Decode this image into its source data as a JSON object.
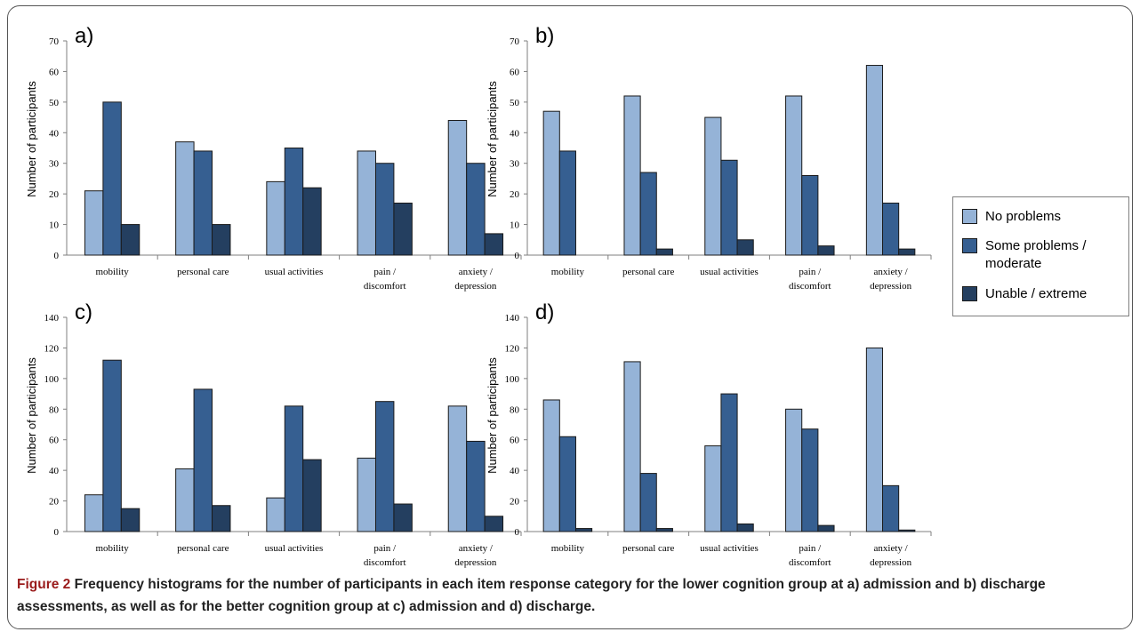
{
  "figure": {
    "caption_label": "Figure 2",
    "caption_text": " Frequency histograms for the number of participants in each item response category for the lower cognition group at a) admission and b) discharge assessments, as well as for the better cognition group at c) admission and d) discharge."
  },
  "legend": {
    "placement": "right",
    "items": [
      {
        "label": "No problems",
        "color": "#95b3d7"
      },
      {
        "label": "Some problems / moderate",
        "color": "#365f91"
      },
      {
        "label": "Unable / extreme",
        "color": "#243f60"
      }
    ]
  },
  "chart_data": [
    {
      "type": "bar",
      "panel": "a)",
      "ylabel": "Number of participants",
      "ylim": [
        0,
        70
      ],
      "yticks": [
        "0",
        "10",
        "20",
        "30",
        "40",
        "50",
        "60",
        "70"
      ],
      "categories": [
        "mobility",
        "personal care",
        "usual activities",
        "pain / discomfort",
        "anxiety / depression"
      ],
      "series": [
        {
          "name": "No problems",
          "values": [
            21,
            37,
            24,
            34,
            44
          ]
        },
        {
          "name": "Some problems / moderate",
          "values": [
            50,
            34,
            35,
            30,
            30
          ]
        },
        {
          "name": "Unable / extreme",
          "values": [
            10,
            10,
            22,
            17,
            7
          ]
        }
      ]
    },
    {
      "type": "bar",
      "panel": "b)",
      "ylabel": "Number of participants",
      "ylim": [
        0,
        70
      ],
      "yticks": [
        "0",
        "10",
        "20",
        "30",
        "40",
        "50",
        "60",
        "70"
      ],
      "categories": [
        "mobility",
        "personal care",
        "usual activities",
        "pain / discomfort",
        "anxiety / depression"
      ],
      "series": [
        {
          "name": "No problems",
          "values": [
            47,
            52,
            45,
            52,
            62
          ]
        },
        {
          "name": "Some problems / moderate",
          "values": [
            34,
            27,
            31,
            26,
            17
          ]
        },
        {
          "name": "Unable / extreme",
          "values": [
            0,
            2,
            5,
            3,
            2
          ]
        }
      ]
    },
    {
      "type": "bar",
      "panel": "c)",
      "ylabel": "Number of participants",
      "ylim": [
        0,
        140
      ],
      "yticks": [
        "0",
        "20",
        "40",
        "60",
        "80",
        "100",
        "120",
        "140"
      ],
      "categories": [
        "mobility",
        "personal care",
        "usual activities",
        "pain / discomfort",
        "anxiety / depression"
      ],
      "series": [
        {
          "name": "No problems",
          "values": [
            24,
            41,
            22,
            48,
            82
          ]
        },
        {
          "name": "Some problems / moderate",
          "values": [
            112,
            93,
            82,
            85,
            59
          ]
        },
        {
          "name": "Unable / extreme",
          "values": [
            15,
            17,
            47,
            18,
            10
          ]
        }
      ]
    },
    {
      "type": "bar",
      "panel": "d)",
      "ylabel": "Number of participants",
      "ylim": [
        0,
        140
      ],
      "yticks": [
        "0",
        "20",
        "40",
        "60",
        "80",
        "100",
        "120",
        "140"
      ],
      "categories": [
        "mobility",
        "personal care",
        "usual activities",
        "pain / discomfort",
        "anxiety / depression"
      ],
      "series": [
        {
          "name": "No problems",
          "values": [
            86,
            111,
            56,
            80,
            120
          ]
        },
        {
          "name": "Some problems / moderate",
          "values": [
            62,
            38,
            90,
            67,
            30
          ]
        },
        {
          "name": "Unable / extreme",
          "values": [
            2,
            2,
            5,
            4,
            1
          ]
        }
      ]
    }
  ]
}
